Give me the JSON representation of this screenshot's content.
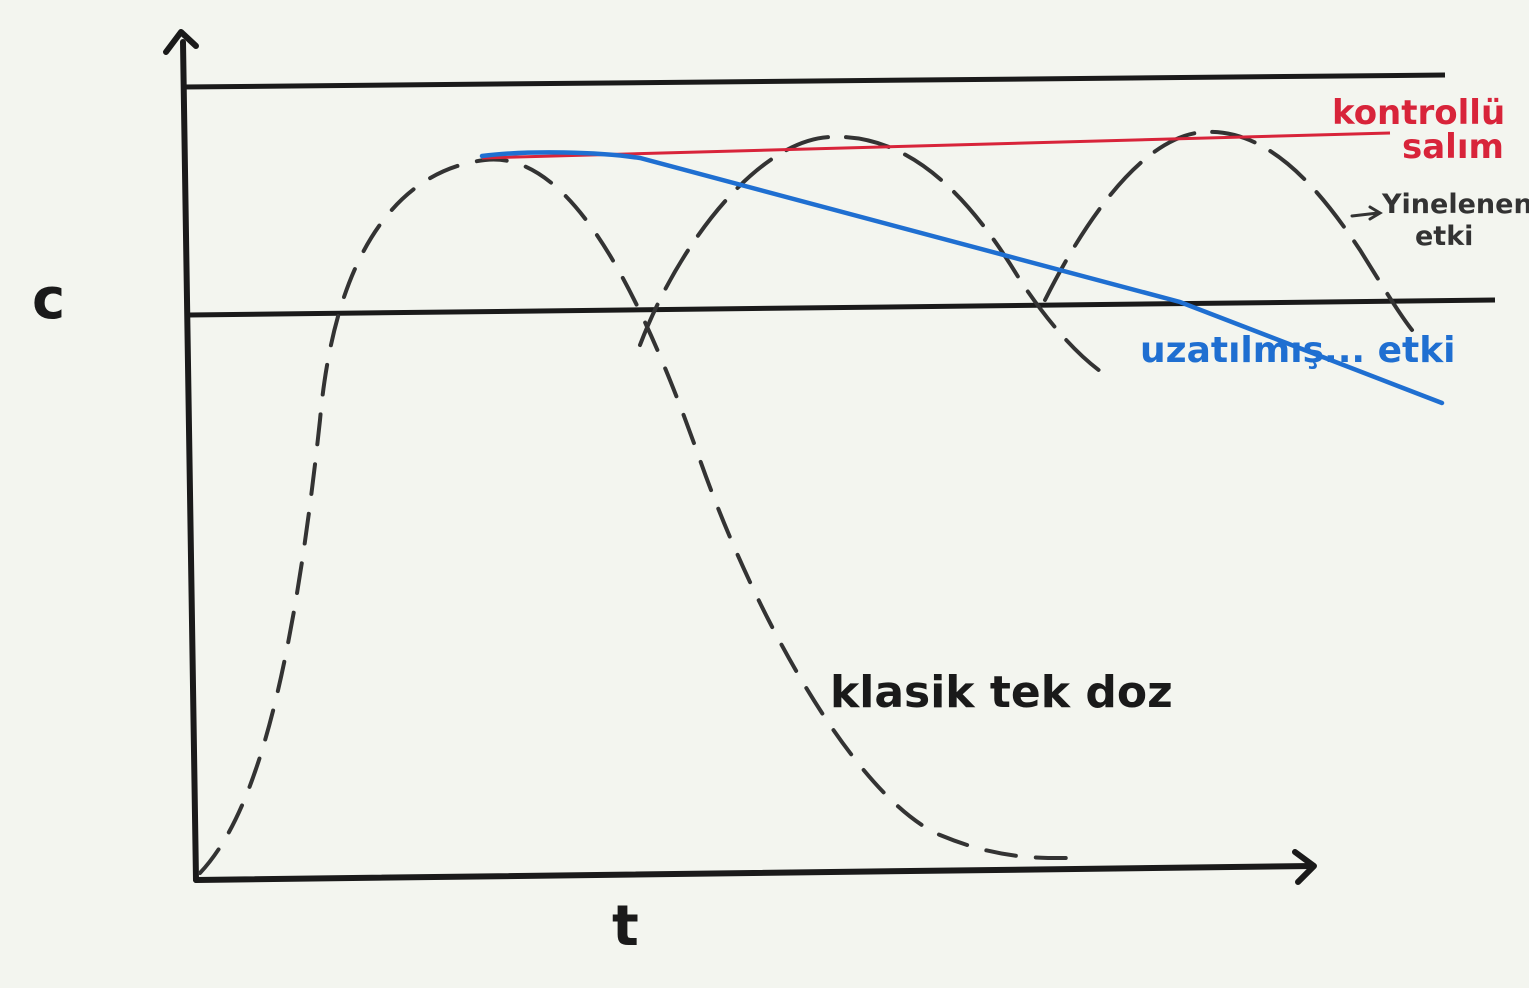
{
  "axes": {
    "y_label": "c",
    "x_label": "t"
  },
  "annotations": {
    "controlled_release": [
      "kontrollü",
      "salım"
    ],
    "repeated_action": [
      "Yinelenen",
      "etki"
    ],
    "prolonged_action": "uzatılmış... etki",
    "classic_single_dose": "klasik tek doz"
  },
  "colors": {
    "ink": "#1a1a1a",
    "dashed": "#333333",
    "controlled": "#d8243a",
    "prolonged": "#1f6fd1",
    "paper": "#f3f5ef"
  }
}
